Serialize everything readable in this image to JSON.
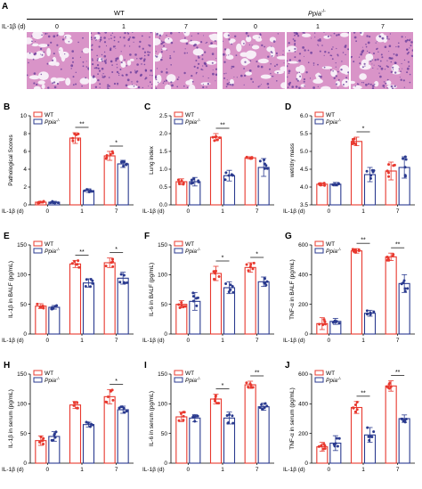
{
  "panel_a": {
    "letter": "A",
    "groups": [
      "WT",
      "Ppia-/-"
    ],
    "group_wt": "WT",
    "group_ko_base": "Ppia",
    "group_ko_sup": "-/-",
    "il1b_label": "IL-1β (d)",
    "days": [
      "0",
      "1",
      "7"
    ]
  },
  "legend": {
    "wt": "WT",
    "ko_base": "Ppia",
    "ko_sup": "-/-"
  },
  "colors": {
    "wt": "#e8382e",
    "ko": "#2a3a8f",
    "tissue_pink": "#d994c8",
    "tissue_purple": "#6a3f9c",
    "background_light": "#f7eef7"
  },
  "chart_data": [
    {
      "id": "B",
      "letter": "B",
      "type": "bar",
      "ylabel": "Pathological Scores",
      "ylim": [
        0,
        10
      ],
      "yticks": [
        "0",
        "2",
        "4",
        "6",
        "8",
        "10"
      ],
      "xlabel": "IL-1β (d)",
      "categories": [
        "0",
        "1",
        "7"
      ],
      "series": [
        {
          "name": "WT",
          "values": [
            0.3,
            7.5,
            5.5
          ],
          "errors": [
            0.1,
            0.6,
            0.5
          ]
        },
        {
          "name": "Ppia-/-",
          "values": [
            0.3,
            1.6,
            4.6
          ],
          "errors": [
            0.1,
            0.2,
            0.4
          ]
        }
      ],
      "significance": [
        {
          "category": 1,
          "label": "**"
        },
        {
          "category": 2,
          "label": "*"
        }
      ],
      "legend_position": "top-left"
    },
    {
      "id": "C",
      "letter": "C",
      "type": "bar",
      "ylabel": "Lung index",
      "ylim": [
        0,
        2.5
      ],
      "yticks": [
        "0.0",
        "0.5",
        "1.0",
        "1.5",
        "2.0",
        "2.5"
      ],
      "xlabel": "IL-1β (d)",
      "categories": [
        "0",
        "1",
        "7"
      ],
      "series": [
        {
          "name": "WT",
          "values": [
            0.65,
            1.9,
            1.32
          ],
          "errors": [
            0.08,
            0.1,
            0.03
          ]
        },
        {
          "name": "Ppia-/-",
          "values": [
            0.65,
            0.82,
            1.05
          ],
          "errors": [
            0.12,
            0.15,
            0.25
          ]
        }
      ],
      "significance": [
        {
          "category": 1,
          "label": "**"
        }
      ],
      "legend_position": "top-left"
    },
    {
      "id": "D",
      "letter": "D",
      "type": "bar",
      "ylabel": "wet/dry mass",
      "ylim": [
        3.5,
        6.0
      ],
      "yticks": [
        "3.5",
        "4.0",
        "4.5",
        "5.0",
        "5.5",
        "6.0"
      ],
      "xlabel": "IL-1β (d)",
      "categories": [
        "0",
        "1",
        "7"
      ],
      "series": [
        {
          "name": "WT",
          "values": [
            4.08,
            5.28,
            4.45
          ],
          "errors": [
            0.04,
            0.12,
            0.25
          ]
        },
        {
          "name": "Ppia-/-",
          "values": [
            4.08,
            4.35,
            4.55
          ],
          "errors": [
            0.05,
            0.2,
            0.3
          ]
        }
      ],
      "significance": [
        {
          "category": 1,
          "label": "*"
        }
      ],
      "legend_position": "top-left"
    },
    {
      "id": "E",
      "letter": "E",
      "type": "bar",
      "ylabel": "IL-1β in BALF (pg/mL)",
      "ylim": [
        0,
        150
      ],
      "yticks": [
        "0",
        "50",
        "100",
        "150"
      ],
      "xlabel": "IL-1β (d)",
      "categories": [
        "0",
        "1",
        "7"
      ],
      "series": [
        {
          "name": "WT",
          "values": [
            47,
            118,
            120
          ],
          "errors": [
            4,
            6,
            8
          ]
        },
        {
          "name": "Ppia-/-",
          "values": [
            45,
            86,
            94
          ],
          "errors": [
            3,
            7,
            10
          ]
        }
      ],
      "significance": [
        {
          "category": 1,
          "label": "**"
        },
        {
          "category": 2,
          "label": "*"
        }
      ],
      "legend_position": "top-left"
    },
    {
      "id": "F",
      "letter": "F",
      "type": "bar",
      "ylabel": "IL-6 in BALF (pg/mL)",
      "ylim": [
        0,
        150
      ],
      "yticks": [
        "0",
        "50",
        "100",
        "150"
      ],
      "xlabel": "IL-1β (d)",
      "categories": [
        "0",
        "1",
        "7"
      ],
      "series": [
        {
          "name": "WT",
          "values": [
            50,
            102,
            112
          ],
          "errors": [
            6,
            12,
            8
          ]
        },
        {
          "name": "Ppia-/-",
          "values": [
            55,
            78,
            88
          ],
          "errors": [
            15,
            10,
            8
          ]
        }
      ],
      "significance": [
        {
          "category": 1,
          "label": "*"
        },
        {
          "category": 2,
          "label": "*"
        }
      ],
      "legend_position": "top-left"
    },
    {
      "id": "G",
      "letter": "G",
      "type": "bar",
      "ylabel": "TNF-α in BALF (pg/mL)",
      "ylim": [
        0,
        600
      ],
      "yticks": [
        "0",
        "200",
        "400",
        "600"
      ],
      "xlabel": "IL-1β (d)",
      "categories": [
        "0",
        "1",
        "7"
      ],
      "series": [
        {
          "name": "WT",
          "values": [
            70,
            560,
            520
          ],
          "errors": [
            40,
            15,
            25
          ]
        },
        {
          "name": "Ppia-/-",
          "values": [
            85,
            140,
            340
          ],
          "errors": [
            20,
            20,
            60
          ]
        }
      ],
      "significance": [
        {
          "category": 1,
          "label": "**"
        },
        {
          "category": 2,
          "label": "**"
        }
      ],
      "legend_position": "top-left"
    },
    {
      "id": "H",
      "letter": "H",
      "type": "bar",
      "ylabel": "IL-1β in serum (pg/mL)",
      "ylim": [
        0,
        150
      ],
      "yticks": [
        "0",
        "50",
        "100",
        "150"
      ],
      "xlabel": "IL-1β (d)",
      "categories": [
        "0",
        "1",
        "7"
      ],
      "series": [
        {
          "name": "WT",
          "values": [
            38,
            98,
            112
          ],
          "errors": [
            8,
            6,
            12
          ]
        },
        {
          "name": "Ppia-/-",
          "values": [
            45,
            65,
            90
          ],
          "errors": [
            8,
            4,
            6
          ]
        }
      ],
      "significance": [
        {
          "category": 2,
          "label": "*"
        }
      ],
      "legend_position": "top-left"
    },
    {
      "id": "I",
      "letter": "I",
      "type": "bar",
      "ylabel": "IL-6 in serum (pg/mL)",
      "ylim": [
        0,
        150
      ],
      "yticks": [
        "0",
        "50",
        "100",
        "150"
      ],
      "xlabel": "IL-1β (d)",
      "categories": [
        "0",
        "1",
        "7"
      ],
      "series": [
        {
          "name": "WT",
          "values": [
            78,
            108,
            132
          ],
          "errors": [
            8,
            8,
            6
          ]
        },
        {
          "name": "Ppia-/-",
          "values": [
            76,
            76,
            95
          ],
          "errors": [
            6,
            10,
            6
          ]
        }
      ],
      "significance": [
        {
          "category": 1,
          "label": "*"
        },
        {
          "category": 2,
          "label": "**"
        }
      ],
      "legend_position": "top-left"
    },
    {
      "id": "J",
      "letter": "J",
      "type": "bar",
      "ylabel": "TNF-α in serum (pg/mL)",
      "ylim": [
        0,
        600
      ],
      "yticks": [
        "0",
        "200",
        "400",
        "600"
      ],
      "xlabel": "IL-1β (d)",
      "categories": [
        "0",
        "1",
        "7"
      ],
      "series": [
        {
          "name": "WT",
          "values": [
            110,
            375,
            520
          ],
          "errors": [
            30,
            40,
            35
          ]
        },
        {
          "name": "Ppia-/-",
          "values": [
            135,
            190,
            300
          ],
          "errors": [
            50,
            50,
            25
          ]
        }
      ],
      "significance": [
        {
          "category": 1,
          "label": "**"
        },
        {
          "category": 2,
          "label": "**"
        }
      ],
      "legend_position": "top-left"
    }
  ]
}
